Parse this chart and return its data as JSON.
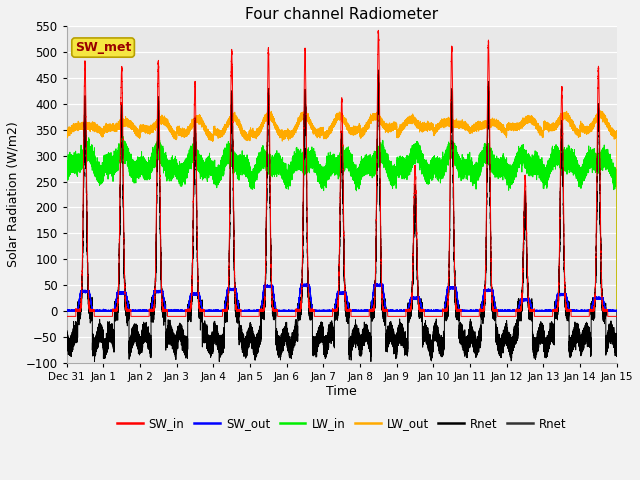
{
  "title": "Four channel Radiometer",
  "xlabel": "Time",
  "ylabel": "Solar Radiation (W/m2)",
  "ylim": [
    -100,
    550
  ],
  "yticks": [
    -100,
    -50,
    0,
    50,
    100,
    150,
    200,
    250,
    300,
    350,
    400,
    450,
    500,
    550
  ],
  "background_color": "#f2f2f2",
  "plot_bg_color": "#e8e8e8",
  "annotation_label": "SW_met",
  "legend_entries": [
    {
      "label": "SW_in",
      "color": "#ff0000"
    },
    {
      "label": "SW_out",
      "color": "#0000ff"
    },
    {
      "label": "LW_in",
      "color": "#00ee00"
    },
    {
      "label": "LW_out",
      "color": "#ffaa00"
    },
    {
      "label": "Rnet",
      "color": "#000000"
    },
    {
      "label": "Rnet",
      "color": "#333333"
    }
  ],
  "date_labels": [
    "Dec 31",
    "Jan 1",
    "Jan 2",
    "Jan 3",
    "Jan 4",
    "Jan 5",
    "Jan 6",
    "Jan 7",
    "Jan 8",
    "Jan 9",
    "Jan 10",
    "Jan 11",
    "Jan 12",
    "Jan 13",
    "Jan 14",
    "Jan 15"
  ],
  "SW_in_peaks": [
    480,
    470,
    480,
    440,
    500,
    505,
    505,
    410,
    540,
    280,
    510,
    520,
    260,
    430,
    470
  ],
  "SW_out_peaks": [
    38,
    35,
    38,
    33,
    42,
    48,
    50,
    35,
    50,
    25,
    45,
    40,
    22,
    32,
    25
  ],
  "LW_out_base": 340,
  "LW_in_base": 280,
  "figsize": [
    6.4,
    4.8
  ],
  "dpi": 100
}
